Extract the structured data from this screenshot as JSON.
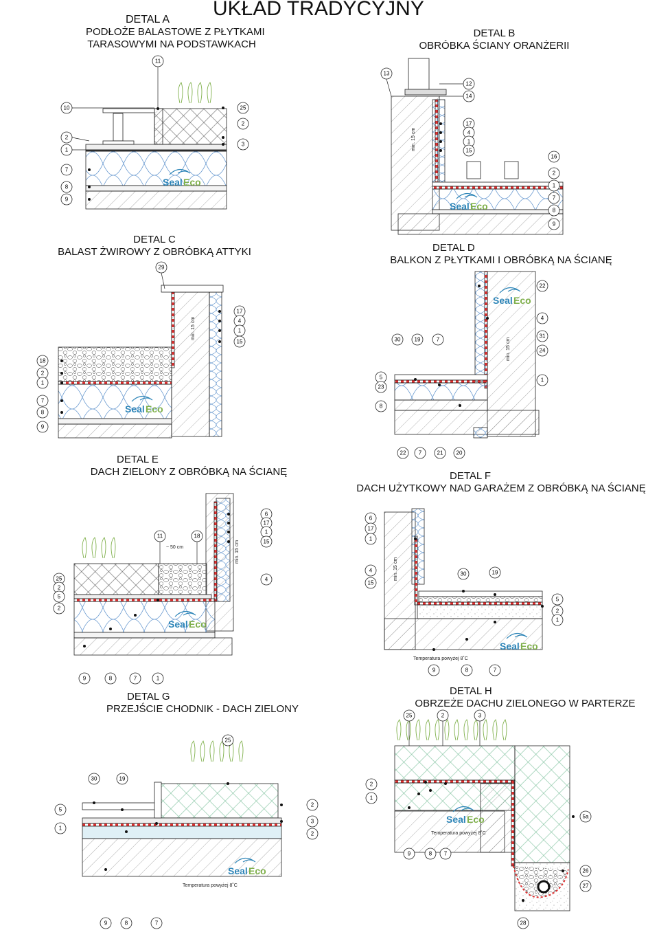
{
  "main_title": "UKŁAD TRADYCYJNY",
  "details": {
    "A": {
      "title": "DETAL A",
      "subtitle1": "PODŁOŻE BALASTOWE Z PŁYTKAMI",
      "subtitle2": "TARASOWYMI NA PODSTAWKACH"
    },
    "B": {
      "title": "DETAL B",
      "subtitle": "OBRÓBKA ŚCIANY ORANŻERII"
    },
    "C": {
      "title": "DETAL C",
      "subtitle": "BALAST ŻWIROWY Z OBRÓBKĄ ATTYKI"
    },
    "D": {
      "title": "DETAL D",
      "subtitle": "BALKON Z PŁYTKAMI I OBRÓBKĄ NA ŚCIANĘ"
    },
    "E": {
      "title": "DETAL E",
      "subtitle": "DACH ZIELONY Z OBRÓBKĄ NA ŚCIANĘ"
    },
    "F": {
      "title": "DETAL F",
      "subtitle": "DACH UŻYTKOWY NAD GARAŻEM Z OBRÓBKĄ NA ŚCIANĘ"
    },
    "G": {
      "title": "DETAL G",
      "subtitle": "PRZEJŚCIE CHODNIK - DACH ZIELONY"
    },
    "H": {
      "title": "DETAL H",
      "subtitle": "OBRZEŻE DACHU ZIELONEGO W PARTERZE"
    }
  },
  "annotations": {
    "min15": "min. 15 cm",
    "approx50": "~ 50 cm",
    "temperature": "Temperatura powyżej 8˚C"
  },
  "logo": {
    "part1": "Seal",
    "part2": "Eco"
  },
  "colors": {
    "membrane": "#e03030",
    "logo_blue": "#2f86b8",
    "logo_green": "#7fb04b",
    "insulation": "#6a9ad0",
    "line": "#222"
  },
  "labels": {
    "A": [
      "11",
      "10",
      "25",
      "2",
      "1",
      "2",
      "3",
      "7",
      "8",
      "9"
    ],
    "B": [
      "13",
      "12",
      "14",
      "17",
      "4",
      "1",
      "15",
      "16",
      "2",
      "1",
      "7",
      "8",
      "9"
    ],
    "C": [
      "29",
      "17",
      "4",
      "1",
      "15",
      "18",
      "2",
      "1",
      "7",
      "8",
      "9"
    ],
    "D": [
      "22",
      "4",
      "30",
      "19",
      "7",
      "31",
      "24",
      "5",
      "1",
      "23",
      "8",
      "22",
      "7",
      "21",
      "20"
    ],
    "E": [
      "6",
      "17",
      "1",
      "15",
      "11",
      "18",
      "25",
      "2",
      "5",
      "2",
      "4",
      "9",
      "8",
      "7",
      "1"
    ],
    "F": [
      "6",
      "17",
      "1",
      "4",
      "15",
      "30",
      "19",
      "5",
      "2",
      "1",
      "9",
      "8",
      "7"
    ],
    "G": [
      "25",
      "30",
      "19",
      "5",
      "1",
      "2",
      "3",
      "2",
      "9",
      "8",
      "7"
    ],
    "H": [
      "25",
      "2",
      "3",
      "2",
      "1",
      "5a",
      "9",
      "8",
      "7",
      "26",
      "27",
      "28"
    ]
  }
}
